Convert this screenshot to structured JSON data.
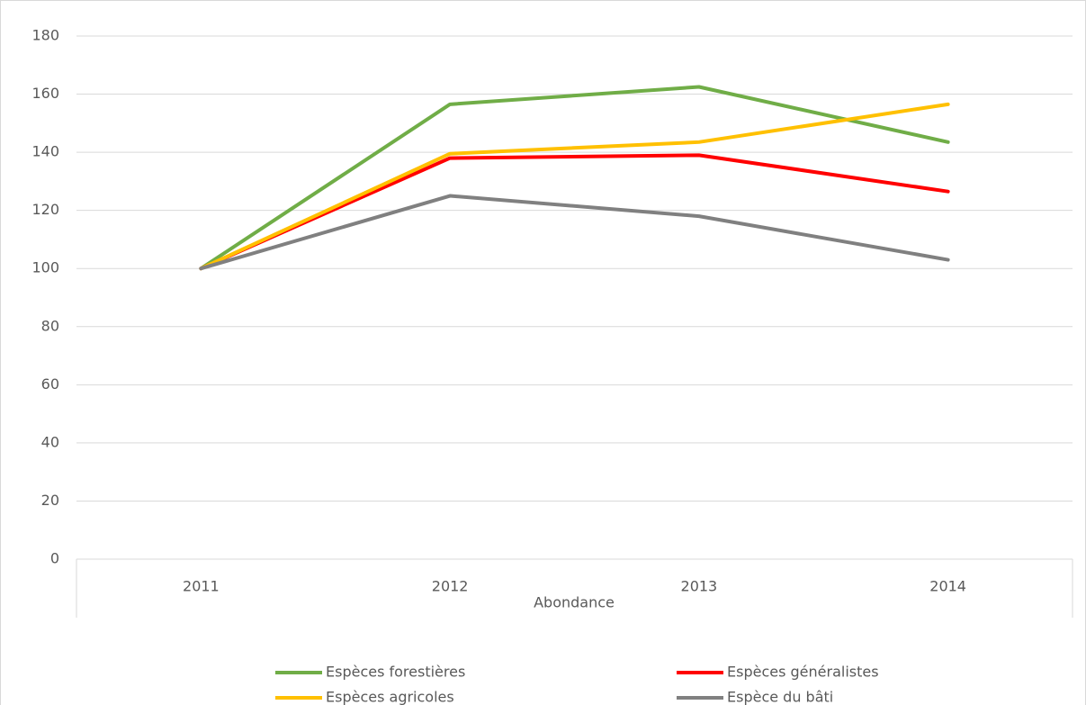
{
  "chart_data": {
    "type": "line",
    "x_label": "Abondance",
    "categories": [
      "2011",
      "2012",
      "2013",
      "2014"
    ],
    "series": [
      {
        "name": "Espèces forestières",
        "color": "#70ad47",
        "values": [
          100,
          156.5,
          162.5,
          143.5
        ]
      },
      {
        "name": "Espèces généralistes",
        "color": "#ff0000",
        "values": [
          100,
          138,
          139,
          126.5
        ]
      },
      {
        "name": "Espèces agricoles",
        "color": "#ffc000",
        "values": [
          100,
          139.5,
          143.5,
          156.5
        ]
      },
      {
        "name": "Espèce du bâti",
        "color": "#808080",
        "values": [
          100,
          125,
          118,
          103
        ]
      }
    ],
    "ylim": [
      0,
      180
    ],
    "yticks": [
      0,
      20,
      40,
      60,
      80,
      100,
      120,
      140,
      160,
      180
    ],
    "grid": true,
    "legend": "bottom"
  }
}
